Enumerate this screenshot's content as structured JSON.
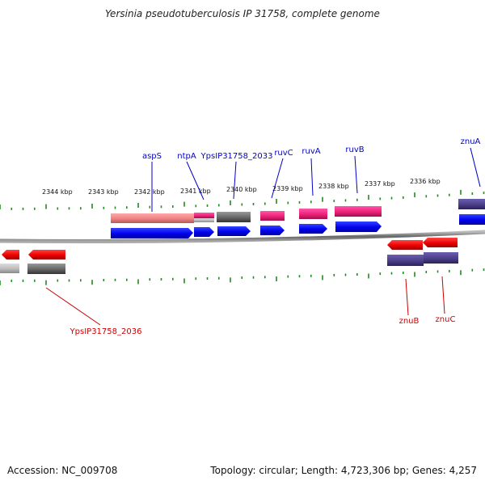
{
  "title": "Yersinia pseudotuberculosis IP 31758, complete genome",
  "footer": {
    "accession": "Accession: NC_009708",
    "topology": "Topology: circular; Length: 4,723,306 bp; Genes: 4,257"
  },
  "ruler": {
    "labels": [
      "2344 kbp",
      "2343 kbp",
      "2342 kbp",
      "2341 kbp",
      "2340 kbp",
      "2339 kbp",
      "2338 kbp",
      "2337 kbp",
      "2336 kbp"
    ]
  },
  "genes_top": [
    {
      "label": "aspS",
      "color": "#0000cc"
    },
    {
      "label": "ntpA",
      "color": "#0000cc"
    },
    {
      "label": "YpsIP31758_2033",
      "color": "#0000cc"
    },
    {
      "label": "ruvC",
      "color": "#0000cc"
    },
    {
      "label": "ruvA",
      "color": "#0000cc"
    },
    {
      "label": "ruvB",
      "color": "#0000cc"
    },
    {
      "label": "znuA",
      "color": "#0000cc"
    }
  ],
  "genes_bottom": [
    {
      "label": "YpsIP31758_2036",
      "color": "#cc0000"
    },
    {
      "label": "znuB",
      "color": "#cc0000"
    },
    {
      "label": "znuC",
      "color": "#cc0000"
    }
  ],
  "colors": {
    "forward_cds": "#0000ee",
    "reverse_cds": "#ee0000",
    "tick": "#228b22",
    "backbone": "#777777",
    "pink_feature": "#ee2277",
    "salmon_feature": "#ee8888",
    "gray_feature": "#666666",
    "slate_feature": "#4b3f8a"
  }
}
